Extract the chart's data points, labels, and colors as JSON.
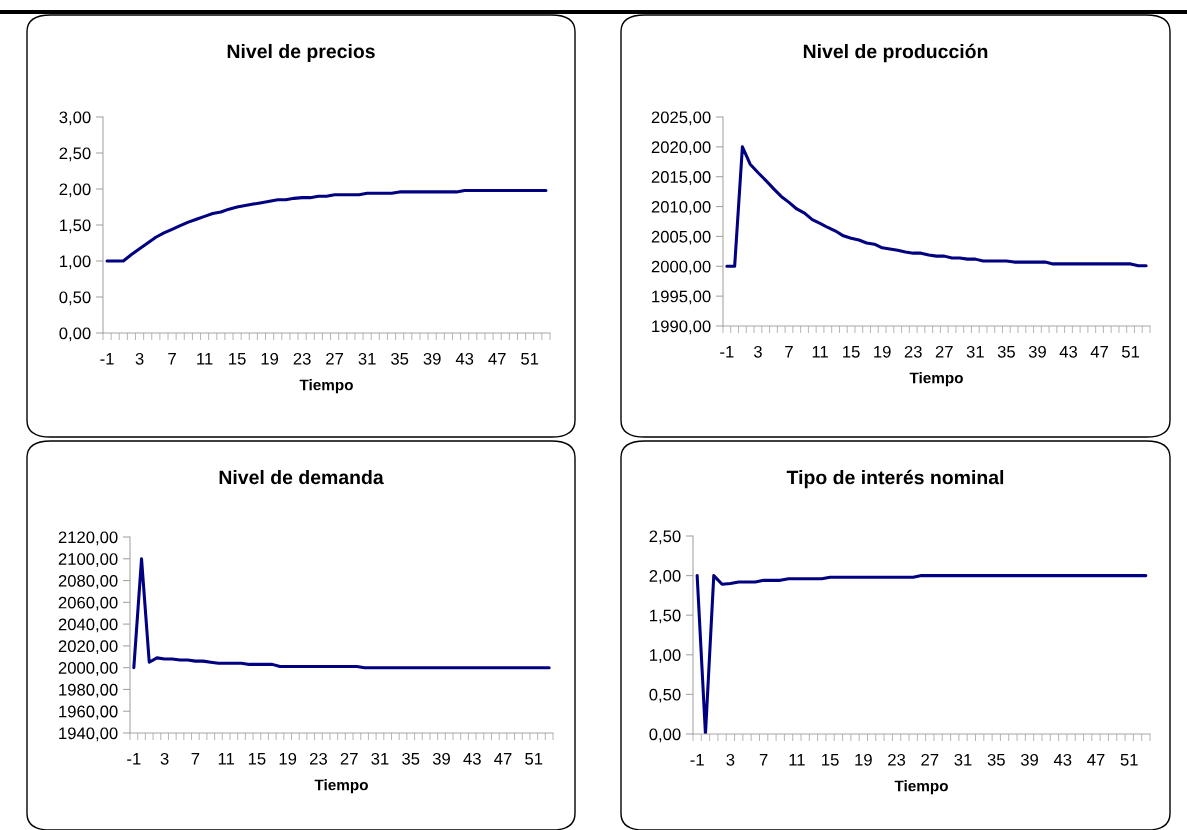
{
  "chart_data": [
    {
      "type": "line",
      "title": "Nivel de precios",
      "xlabel": "Tiempo",
      "categories": [
        "-1",
        null,
        null,
        null,
        "3",
        null,
        null,
        null,
        "7",
        null,
        null,
        null,
        "11",
        null,
        null,
        null,
        "15",
        null,
        null,
        null,
        "19",
        null,
        null,
        null,
        "23",
        null,
        null,
        null,
        "27",
        null,
        null,
        null,
        "31",
        null,
        null,
        null,
        "35",
        null,
        null,
        null,
        "39",
        null,
        null,
        null,
        "43",
        null,
        null,
        null,
        "47",
        null,
        null,
        null,
        "51",
        null,
        null
      ],
      "series": [
        {
          "color": "#000080",
          "values": [
            1.0,
            1.0,
            1.0,
            1.09,
            1.17,
            1.25,
            1.33,
            1.39,
            1.44,
            1.49,
            1.54,
            1.58,
            1.62,
            1.66,
            1.68,
            1.72,
            1.75,
            1.77,
            1.79,
            1.81,
            1.83,
            1.85,
            1.85,
            1.87,
            1.88,
            1.88,
            1.9,
            1.9,
            1.92,
            1.92,
            1.92,
            1.92,
            1.94,
            1.94,
            1.94,
            1.94,
            1.96,
            1.96,
            1.96,
            1.96,
            1.96,
            1.96,
            1.96,
            1.96,
            1.98,
            1.98,
            1.98,
            1.98,
            1.98,
            1.98,
            1.98,
            1.98,
            1.98,
            1.98,
            1.98
          ]
        }
      ],
      "ylim": [
        0,
        3
      ],
      "yticks": [
        {
          "value": 0,
          "label": "0,00"
        },
        {
          "value": 0.5,
          "label": "0,50"
        },
        {
          "value": 1,
          "label": "1,00"
        },
        {
          "value": 1.5,
          "label": "1,50"
        },
        {
          "value": 2,
          "label": "2,00"
        },
        {
          "value": 2.5,
          "label": "2,50"
        },
        {
          "value": 3,
          "label": "3,00"
        }
      ],
      "grid": false,
      "legend": false
    },
    {
      "type": "line",
      "title": "Nivel de producción",
      "xlabel": "Tiempo",
      "categories": [
        "-1",
        null,
        null,
        null,
        "3",
        null,
        null,
        null,
        "7",
        null,
        null,
        null,
        "11",
        null,
        null,
        null,
        "15",
        null,
        null,
        null,
        "19",
        null,
        null,
        null,
        "23",
        null,
        null,
        null,
        "27",
        null,
        null,
        null,
        "31",
        null,
        null,
        null,
        "35",
        null,
        null,
        null,
        "39",
        null,
        null,
        null,
        "43",
        null,
        null,
        null,
        "47",
        null,
        null,
        null,
        "51",
        null,
        null
      ],
      "series": [
        {
          "color": "#000080",
          "values": [
            2000,
            2000,
            2020,
            2017.1,
            2015.7,
            2014.4,
            2013.0,
            2011.7,
            2010.7,
            2009.6,
            2008.9,
            2007.8,
            2007.2,
            2006.5,
            2005.9,
            2005.1,
            2004.7,
            2004.4,
            2003.9,
            2003.7,
            2003.1,
            2002.9,
            2002.7,
            2002.4,
            2002.2,
            2002.2,
            2001.9,
            2001.7,
            2001.7,
            2001.4,
            2001.4,
            2001.2,
            2001.2,
            2000.9,
            2000.9,
            2000.9,
            2000.9,
            2000.7,
            2000.7,
            2000.7,
            2000.7,
            2000.7,
            2000.4,
            2000.4,
            2000.4,
            2000.4,
            2000.4,
            2000.4,
            2000.4,
            2000.4,
            2000.4,
            2000.4,
            2000.4,
            2000.1,
            2000.1
          ]
        }
      ],
      "ylim": [
        1990,
        2025
      ],
      "yticks": [
        {
          "value": 1990,
          "label": "1990,00"
        },
        {
          "value": 1995,
          "label": "1995,00"
        },
        {
          "value": 2000,
          "label": "2000,00"
        },
        {
          "value": 2005,
          "label": "2005,00"
        },
        {
          "value": 2010,
          "label": "2010,00"
        },
        {
          "value": 2015,
          "label": "2015,00"
        },
        {
          "value": 2020,
          "label": "2020,00"
        },
        {
          "value": 2025,
          "label": "2025,00"
        }
      ],
      "grid": false,
      "legend": false
    },
    {
      "type": "line",
      "title": "Nivel de demanda",
      "xlabel": "Tiempo",
      "categories": [
        "-1",
        null,
        null,
        null,
        "3",
        null,
        null,
        null,
        "7",
        null,
        null,
        null,
        "11",
        null,
        null,
        null,
        "15",
        null,
        null,
        null,
        "19",
        null,
        null,
        null,
        "23",
        null,
        null,
        null,
        "27",
        null,
        null,
        null,
        "31",
        null,
        null,
        null,
        "35",
        null,
        null,
        null,
        "39",
        null,
        null,
        null,
        "43",
        null,
        null,
        null,
        "47",
        null,
        null,
        null,
        "51",
        null,
        null
      ],
      "series": [
        {
          "color": "#000080",
          "values": [
            2000,
            2100,
            2005,
            2009,
            2008,
            2008,
            2007,
            2007,
            2006,
            2006,
            2005,
            2004,
            2004,
            2004,
            2004,
            2003,
            2003,
            2003,
            2003,
            2001,
            2001,
            2001,
            2001,
            2001,
            2001,
            2001,
            2001,
            2001,
            2001,
            2001,
            2000,
            2000,
            2000,
            2000,
            2000,
            2000,
            2000,
            2000,
            2000,
            2000,
            2000,
            2000,
            2000,
            2000,
            2000,
            2000,
            2000,
            2000,
            2000,
            2000,
            2000,
            2000,
            2000,
            2000,
            2000
          ]
        }
      ],
      "ylim": [
        1940,
        2120
      ],
      "yticks": [
        {
          "value": 1940,
          "label": "1940,00"
        },
        {
          "value": 1960,
          "label": "1960,00"
        },
        {
          "value": 1980,
          "label": "1980,00"
        },
        {
          "value": 2000,
          "label": "2000,00"
        },
        {
          "value": 2020,
          "label": "2020,00"
        },
        {
          "value": 2040,
          "label": "2040,00"
        },
        {
          "value": 2060,
          "label": "2060,00"
        },
        {
          "value": 2080,
          "label": "2080,00"
        },
        {
          "value": 2100,
          "label": "2100,00"
        },
        {
          "value": 2120,
          "label": "2120,00"
        }
      ],
      "grid": false,
      "legend": false
    },
    {
      "type": "line",
      "title": "Tipo de interés nominal",
      "xlabel": "Tiempo",
      "categories": [
        "-1",
        null,
        null,
        null,
        "3",
        null,
        null,
        null,
        "7",
        null,
        null,
        null,
        "11",
        null,
        null,
        null,
        "15",
        null,
        null,
        null,
        "19",
        null,
        null,
        null,
        "23",
        null,
        null,
        null,
        "27",
        null,
        null,
        null,
        "31",
        null,
        null,
        null,
        "35",
        null,
        null,
        null,
        "39",
        null,
        null,
        null,
        "43",
        null,
        null,
        null,
        "47",
        null,
        null,
        null,
        "51",
        null,
        null
      ],
      "series": [
        {
          "color": "#000080",
          "values": [
            2.0,
            0.0,
            2.0,
            1.89,
            1.9,
            1.92,
            1.92,
            1.92,
            1.94,
            1.94,
            1.94,
            1.96,
            1.96,
            1.96,
            1.96,
            1.96,
            1.98,
            1.98,
            1.98,
            1.98,
            1.98,
            1.98,
            1.98,
            1.98,
            1.98,
            1.98,
            1.98,
            2.0,
            2.0,
            2.0,
            2.0,
            2.0,
            2.0,
            2.0,
            2.0,
            2.0,
            2.0,
            2.0,
            2.0,
            2.0,
            2.0,
            2.0,
            2.0,
            2.0,
            2.0,
            2.0,
            2.0,
            2.0,
            2.0,
            2.0,
            2.0,
            2.0,
            2.0,
            2.0,
            2.0
          ]
        }
      ],
      "ylim": [
        0,
        2.5
      ],
      "yticks": [
        {
          "value": 0,
          "label": "0,00"
        },
        {
          "value": 0.5,
          "label": "0,50"
        },
        {
          "value": 1,
          "label": "1,00"
        },
        {
          "value": 1.5,
          "label": "1,50"
        },
        {
          "value": 2,
          "label": "2,00"
        },
        {
          "value": 2.5,
          "label": "2,50"
        }
      ],
      "grid": false,
      "legend": false
    }
  ]
}
